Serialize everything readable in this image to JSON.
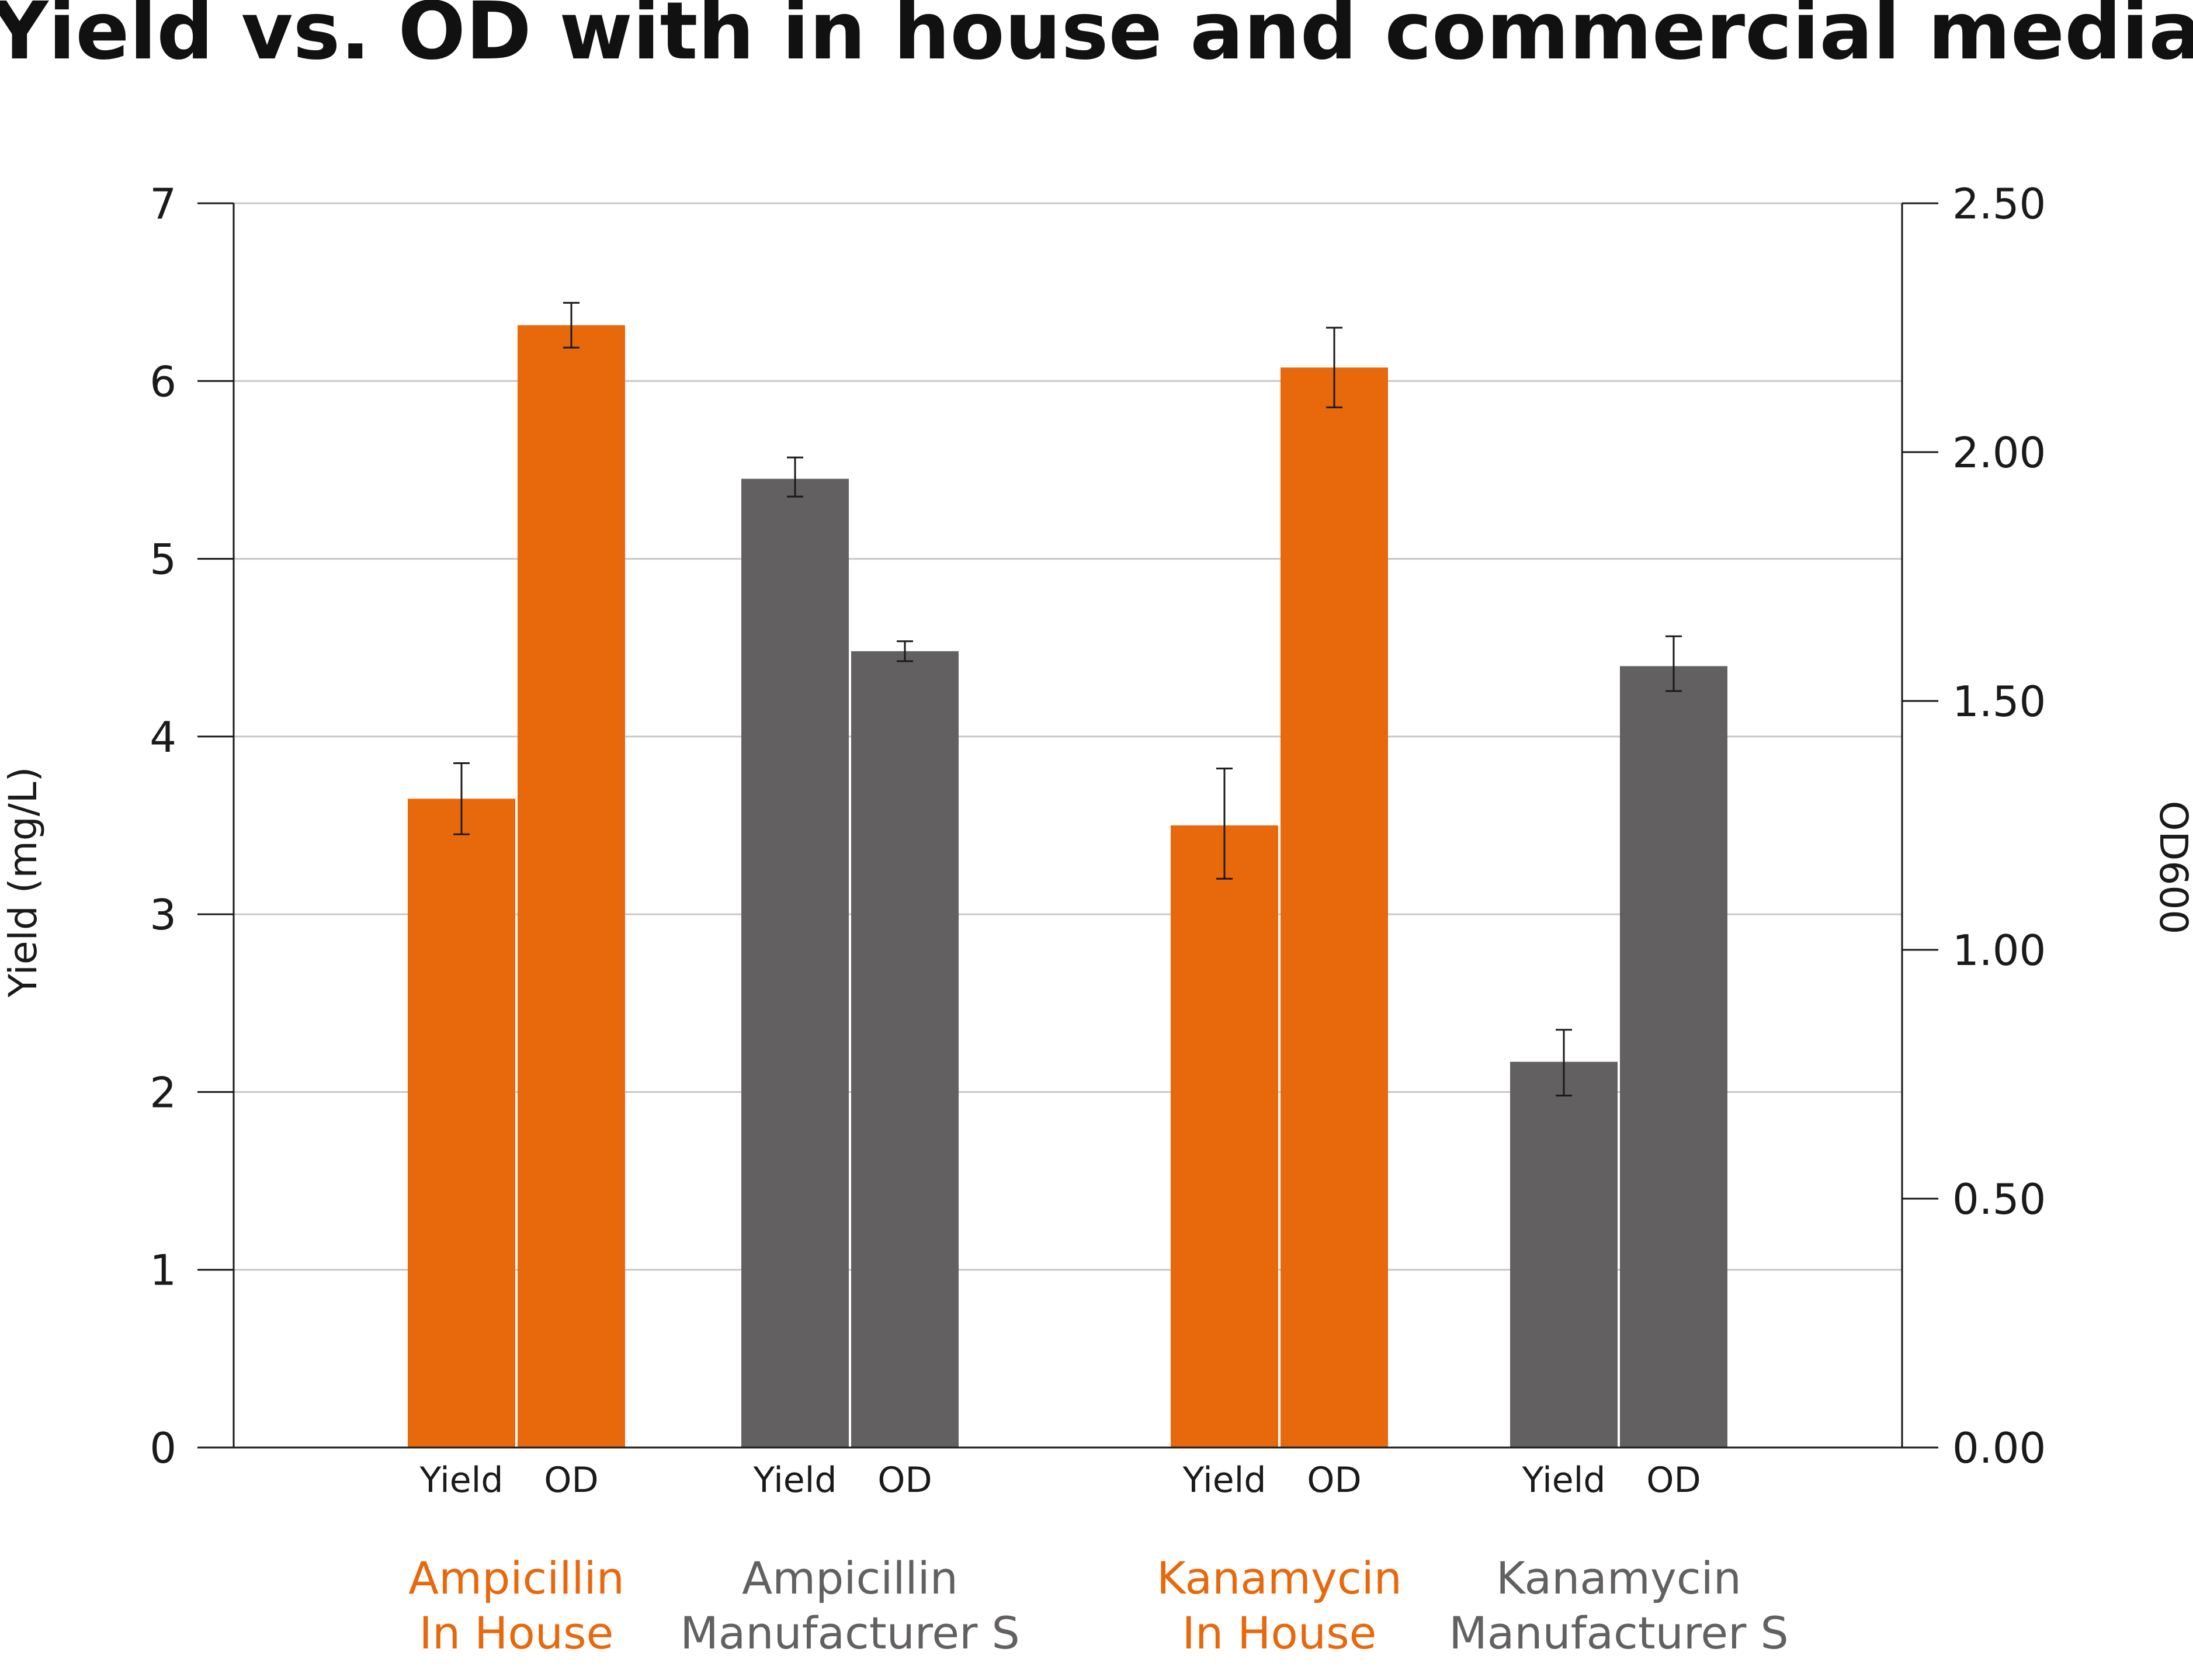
{
  "chart_data": {
    "type": "bar",
    "title": "Yield vs. OD with in house and commercial media",
    "ylabel_left": "Yield (mg/L)",
    "ylabel_right": "OD600",
    "ylim_left": [
      0,
      7
    ],
    "ylim_right": [
      0,
      2.5
    ],
    "yticks_left": [
      "0",
      "1",
      "2",
      "3",
      "4",
      "5",
      "6",
      "7"
    ],
    "yticks_right": [
      "0.00",
      "0.50",
      "1.00",
      "1.50",
      "2.00",
      "2.50"
    ],
    "grid": true,
    "colors": {
      "in_house": "#E8690C",
      "manufacturer": "#626061",
      "gridline": "#c8c8c8"
    },
    "groups": [
      {
        "label_lines": [
          "Ampicillin",
          "In House"
        ],
        "color_key": "in_house",
        "bars": [
          {
            "label": "Yield",
            "axis": "left",
            "value": 3.65,
            "err_low": 3.45,
            "err_high": 3.85
          },
          {
            "label": "OD",
            "axis": "right",
            "value": 2.255,
            "err_low": 2.21,
            "err_high": 2.3
          }
        ]
      },
      {
        "label_lines": [
          "Ampicillin",
          "Manufacturer S"
        ],
        "color_key": "manufacturer",
        "bars": [
          {
            "label": "Yield",
            "axis": "left",
            "value": 5.45,
            "err_low": 5.35,
            "err_high": 5.57
          },
          {
            "label": "OD",
            "axis": "right",
            "value": 1.6,
            "err_low": 1.58,
            "err_high": 1.62
          }
        ]
      },
      {
        "label_lines": [
          "Kanamycin",
          "In House"
        ],
        "color_key": "in_house",
        "bars": [
          {
            "label": "Yield",
            "axis": "left",
            "value": 3.5,
            "err_low": 3.2,
            "err_high": 3.82
          },
          {
            "label": "OD",
            "axis": "right",
            "value": 2.17,
            "err_low": 2.09,
            "err_high": 2.25
          }
        ]
      },
      {
        "label_lines": [
          "Kanamycin",
          "Manufacturer S"
        ],
        "color_key": "manufacturer",
        "bars": [
          {
            "label": "Yield",
            "axis": "left",
            "value": 2.17,
            "err_low": 1.98,
            "err_high": 2.35
          },
          {
            "label": "OD",
            "axis": "right",
            "value": 1.57,
            "err_low": 1.52,
            "err_high": 1.63
          }
        ]
      }
    ]
  }
}
